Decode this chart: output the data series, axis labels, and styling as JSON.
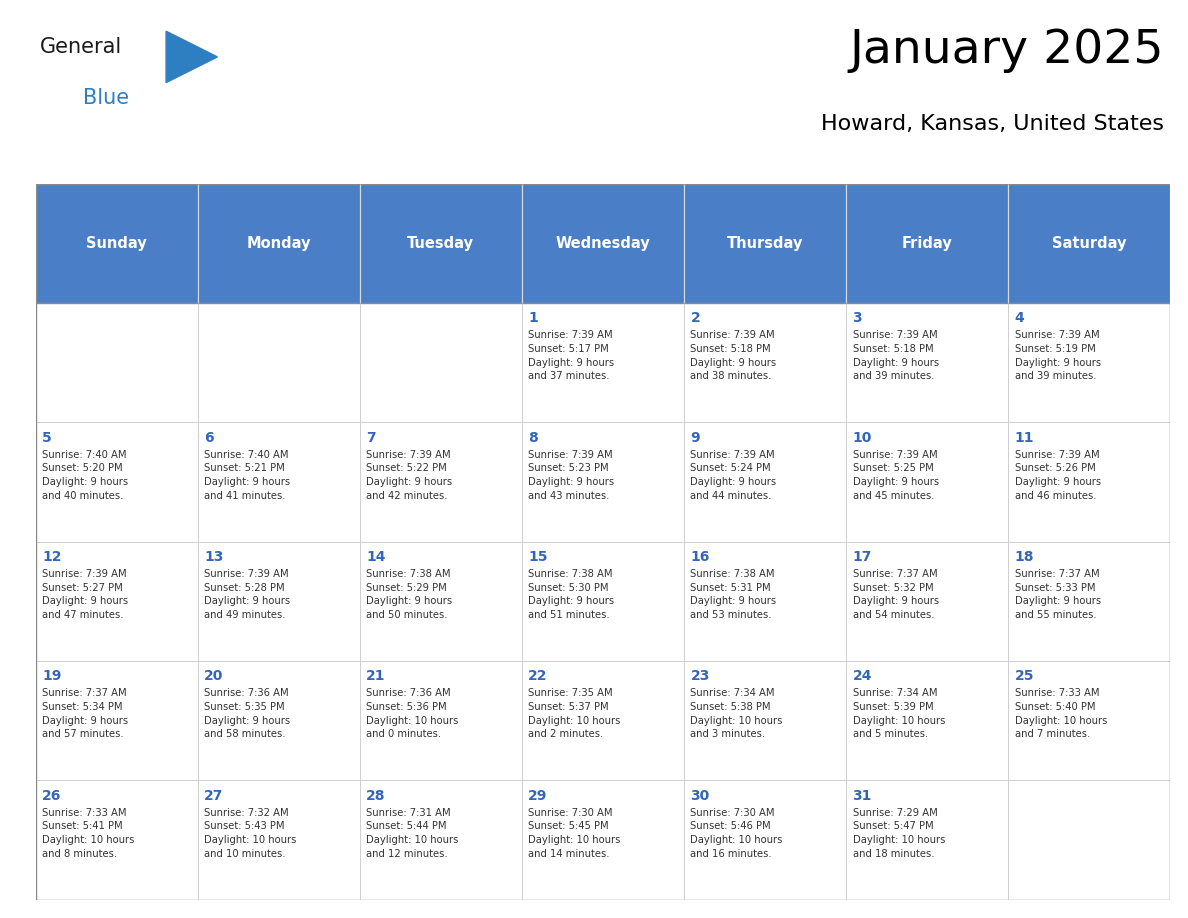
{
  "title": "January 2025",
  "subtitle": "Howard, Kansas, United States",
  "days_of_week": [
    "Sunday",
    "Monday",
    "Tuesday",
    "Wednesday",
    "Thursday",
    "Friday",
    "Saturday"
  ],
  "header_bg": "#4A7EC7",
  "header_text": "#FFFFFF",
  "cell_bg": "#FFFFFF",
  "day_number_color": "#3366BB",
  "text_color": "#333333",
  "border_color": "#CCCCCC",
  "logo_color_general": "#1A1A1A",
  "logo_color_blue": "#2E7EC2",
  "logo_triangle_color": "#2E7EC2",
  "weeks": [
    [
      {
        "day": null,
        "content": ""
      },
      {
        "day": null,
        "content": ""
      },
      {
        "day": null,
        "content": ""
      },
      {
        "day": 1,
        "content": "Sunrise: 7:39 AM\nSunset: 5:17 PM\nDaylight: 9 hours\nand 37 minutes."
      },
      {
        "day": 2,
        "content": "Sunrise: 7:39 AM\nSunset: 5:18 PM\nDaylight: 9 hours\nand 38 minutes."
      },
      {
        "day": 3,
        "content": "Sunrise: 7:39 AM\nSunset: 5:18 PM\nDaylight: 9 hours\nand 39 minutes."
      },
      {
        "day": 4,
        "content": "Sunrise: 7:39 AM\nSunset: 5:19 PM\nDaylight: 9 hours\nand 39 minutes."
      }
    ],
    [
      {
        "day": 5,
        "content": "Sunrise: 7:40 AM\nSunset: 5:20 PM\nDaylight: 9 hours\nand 40 minutes."
      },
      {
        "day": 6,
        "content": "Sunrise: 7:40 AM\nSunset: 5:21 PM\nDaylight: 9 hours\nand 41 minutes."
      },
      {
        "day": 7,
        "content": "Sunrise: 7:39 AM\nSunset: 5:22 PM\nDaylight: 9 hours\nand 42 minutes."
      },
      {
        "day": 8,
        "content": "Sunrise: 7:39 AM\nSunset: 5:23 PM\nDaylight: 9 hours\nand 43 minutes."
      },
      {
        "day": 9,
        "content": "Sunrise: 7:39 AM\nSunset: 5:24 PM\nDaylight: 9 hours\nand 44 minutes."
      },
      {
        "day": 10,
        "content": "Sunrise: 7:39 AM\nSunset: 5:25 PM\nDaylight: 9 hours\nand 45 minutes."
      },
      {
        "day": 11,
        "content": "Sunrise: 7:39 AM\nSunset: 5:26 PM\nDaylight: 9 hours\nand 46 minutes."
      }
    ],
    [
      {
        "day": 12,
        "content": "Sunrise: 7:39 AM\nSunset: 5:27 PM\nDaylight: 9 hours\nand 47 minutes."
      },
      {
        "day": 13,
        "content": "Sunrise: 7:39 AM\nSunset: 5:28 PM\nDaylight: 9 hours\nand 49 minutes."
      },
      {
        "day": 14,
        "content": "Sunrise: 7:38 AM\nSunset: 5:29 PM\nDaylight: 9 hours\nand 50 minutes."
      },
      {
        "day": 15,
        "content": "Sunrise: 7:38 AM\nSunset: 5:30 PM\nDaylight: 9 hours\nand 51 minutes."
      },
      {
        "day": 16,
        "content": "Sunrise: 7:38 AM\nSunset: 5:31 PM\nDaylight: 9 hours\nand 53 minutes."
      },
      {
        "day": 17,
        "content": "Sunrise: 7:37 AM\nSunset: 5:32 PM\nDaylight: 9 hours\nand 54 minutes."
      },
      {
        "day": 18,
        "content": "Sunrise: 7:37 AM\nSunset: 5:33 PM\nDaylight: 9 hours\nand 55 minutes."
      }
    ],
    [
      {
        "day": 19,
        "content": "Sunrise: 7:37 AM\nSunset: 5:34 PM\nDaylight: 9 hours\nand 57 minutes."
      },
      {
        "day": 20,
        "content": "Sunrise: 7:36 AM\nSunset: 5:35 PM\nDaylight: 9 hours\nand 58 minutes."
      },
      {
        "day": 21,
        "content": "Sunrise: 7:36 AM\nSunset: 5:36 PM\nDaylight: 10 hours\nand 0 minutes."
      },
      {
        "day": 22,
        "content": "Sunrise: 7:35 AM\nSunset: 5:37 PM\nDaylight: 10 hours\nand 2 minutes."
      },
      {
        "day": 23,
        "content": "Sunrise: 7:34 AM\nSunset: 5:38 PM\nDaylight: 10 hours\nand 3 minutes."
      },
      {
        "day": 24,
        "content": "Sunrise: 7:34 AM\nSunset: 5:39 PM\nDaylight: 10 hours\nand 5 minutes."
      },
      {
        "day": 25,
        "content": "Sunrise: 7:33 AM\nSunset: 5:40 PM\nDaylight: 10 hours\nand 7 minutes."
      }
    ],
    [
      {
        "day": 26,
        "content": "Sunrise: 7:33 AM\nSunset: 5:41 PM\nDaylight: 10 hours\nand 8 minutes."
      },
      {
        "day": 27,
        "content": "Sunrise: 7:32 AM\nSunset: 5:43 PM\nDaylight: 10 hours\nand 10 minutes."
      },
      {
        "day": 28,
        "content": "Sunrise: 7:31 AM\nSunset: 5:44 PM\nDaylight: 10 hours\nand 12 minutes."
      },
      {
        "day": 29,
        "content": "Sunrise: 7:30 AM\nSunset: 5:45 PM\nDaylight: 10 hours\nand 14 minutes."
      },
      {
        "day": 30,
        "content": "Sunrise: 7:30 AM\nSunset: 5:46 PM\nDaylight: 10 hours\nand 16 minutes."
      },
      {
        "day": 31,
        "content": "Sunrise: 7:29 AM\nSunset: 5:47 PM\nDaylight: 10 hours\nand 18 minutes."
      },
      {
        "day": null,
        "content": ""
      }
    ]
  ]
}
